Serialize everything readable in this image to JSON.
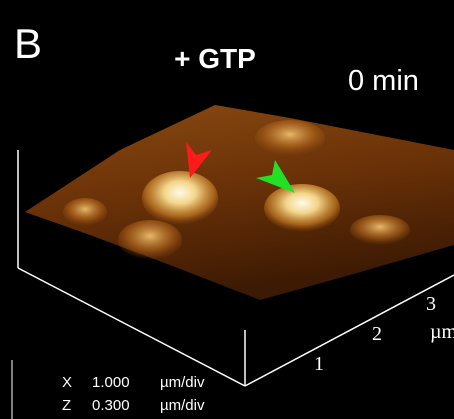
{
  "panel_label": "B",
  "condition": "+ GTP",
  "time": "0 min",
  "axis": {
    "ticks": [
      "1",
      "2",
      "3"
    ],
    "unit": "µm"
  },
  "scale": [
    {
      "axis": "X",
      "value": "1.000",
      "unit": "µm/div"
    },
    {
      "axis": "Z",
      "value": "0.300",
      "unit": "µm/div"
    }
  ]
}
